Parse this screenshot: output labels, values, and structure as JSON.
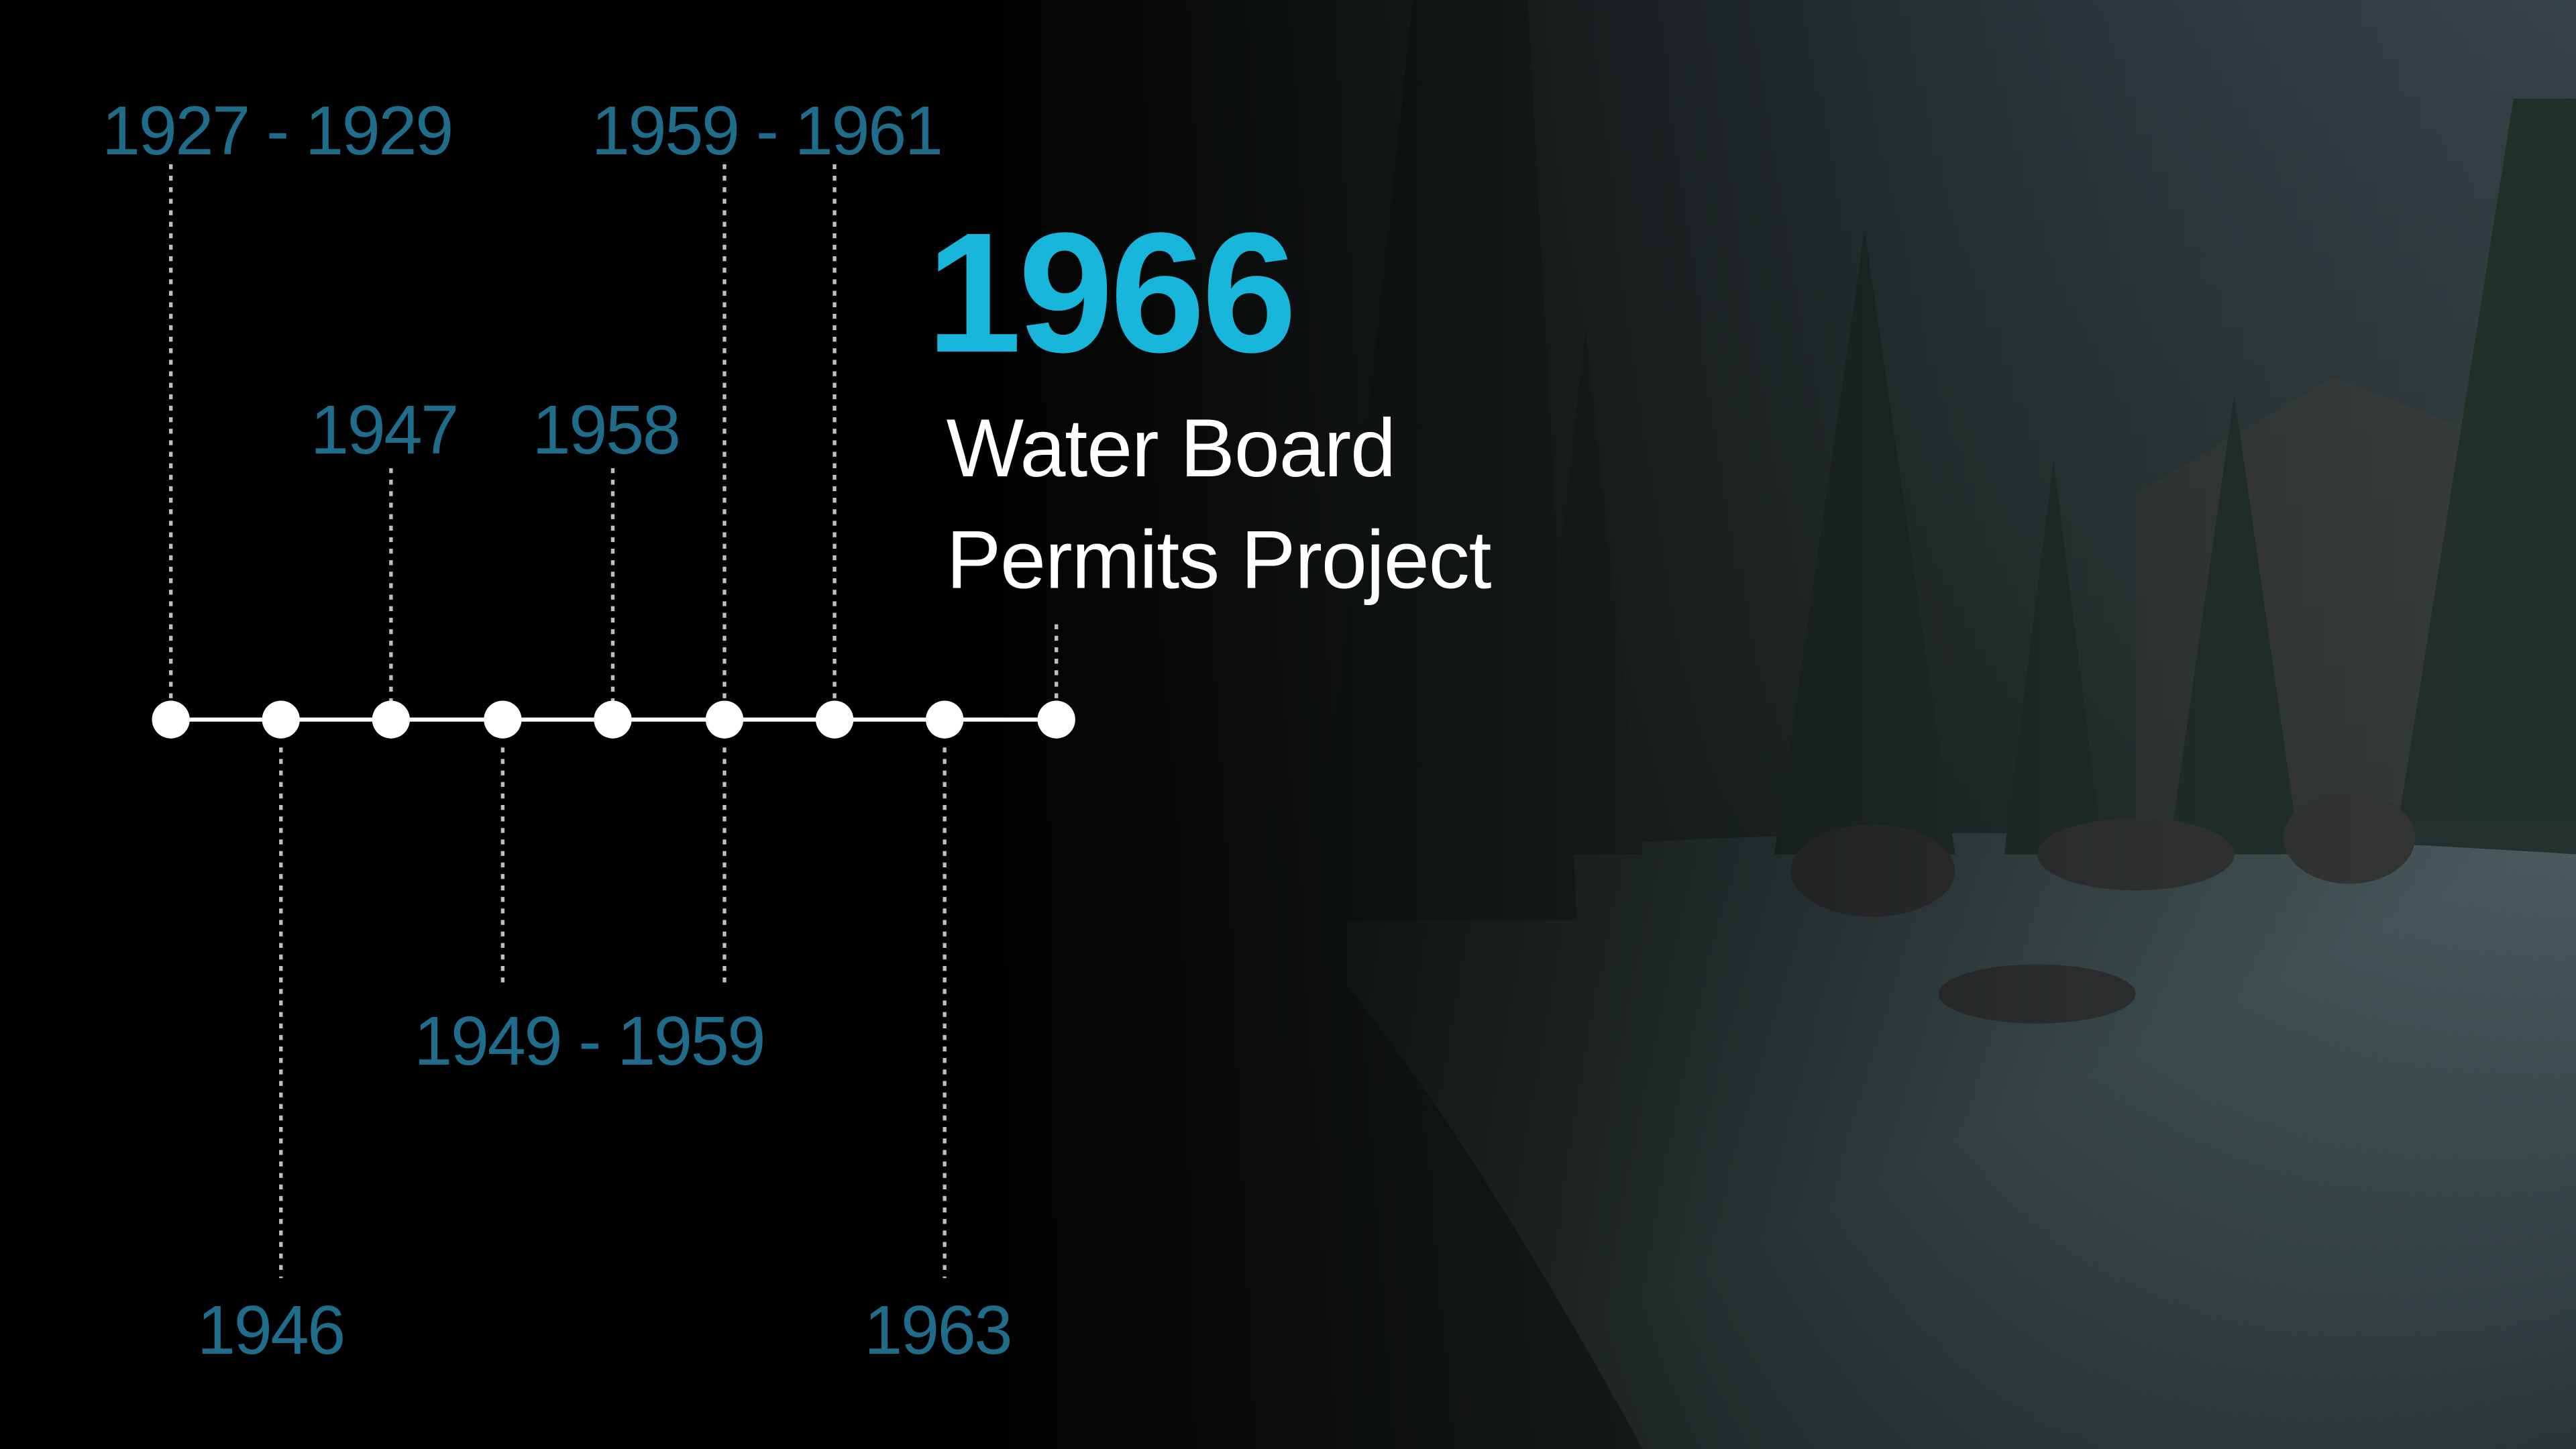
{
  "timeline": {
    "events": [
      {
        "label": "1927 - 1929"
      },
      {
        "label": "1946"
      },
      {
        "label": "1947"
      },
      {
        "label": "1949 - 1959"
      },
      {
        "label": "1958"
      },
      {
        "label": "1959 - 1961"
      },
      {
        "label": "1963"
      }
    ],
    "highlight": {
      "year": "1966",
      "title_lines": [
        "Water Board",
        "Permits Project"
      ]
    }
  }
}
